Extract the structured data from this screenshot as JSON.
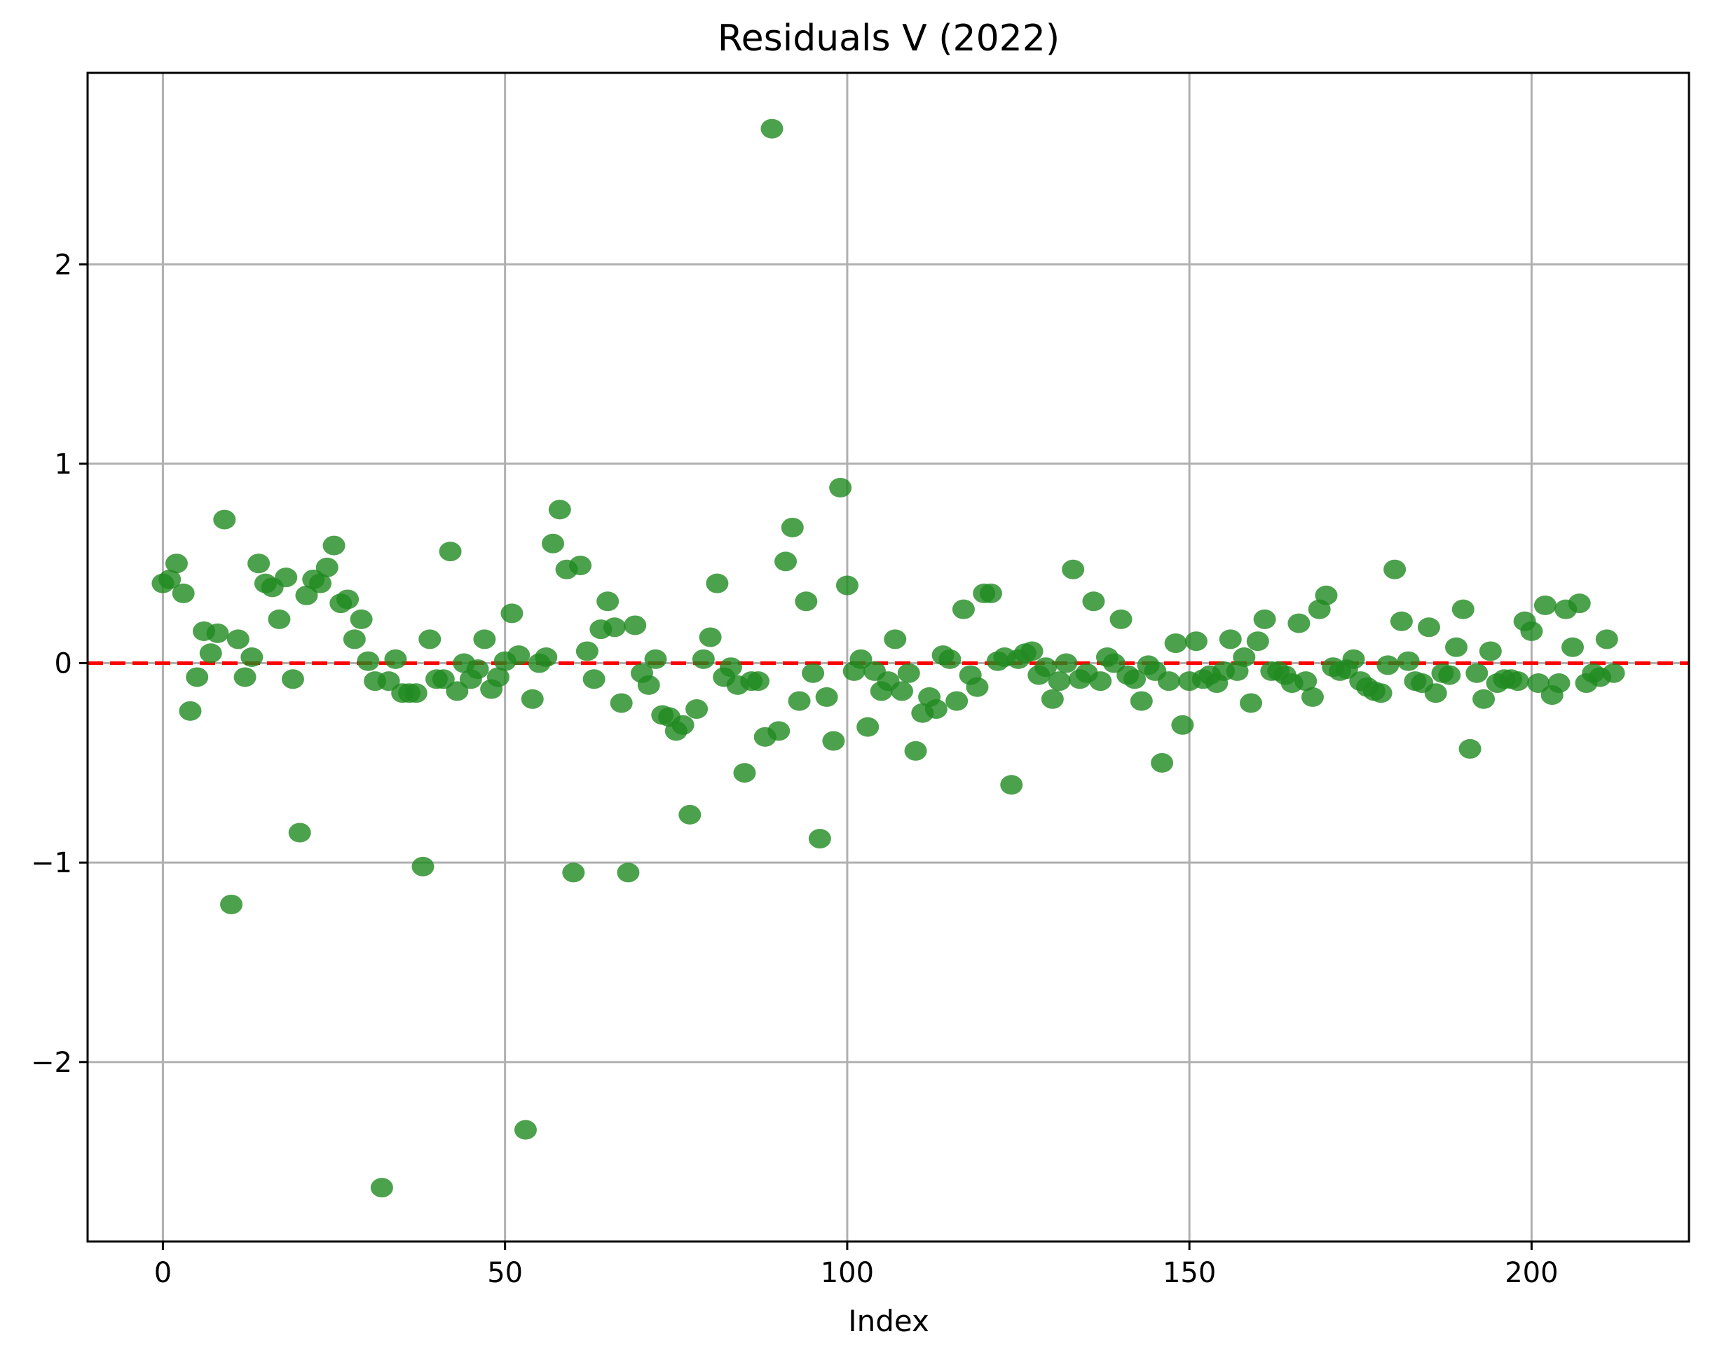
{
  "chart_data": {
    "type": "scatter",
    "title": "Residuals V (2022)",
    "xlabel": "Index",
    "ylabel": "",
    "xlim": [
      -11,
      223
    ],
    "ylim": [
      -2.9,
      2.96
    ],
    "xticks": [
      0,
      50,
      100,
      150,
      200
    ],
    "yticks": [
      -2,
      -1,
      0,
      1,
      2
    ],
    "xtick_labels": [
      "0",
      "50",
      "100",
      "150",
      "200"
    ],
    "ytick_labels": [
      "−2",
      "−1",
      "0",
      "1",
      "2"
    ],
    "grid": true,
    "reference_line": {
      "y": 0,
      "style": "dashed",
      "color": "#ff0000"
    },
    "marker_color": "#1f8a1f",
    "series": [
      {
        "x": [
          0,
          1,
          2,
          3,
          4,
          5,
          6,
          7,
          8,
          9,
          10,
          11,
          12,
          13,
          14,
          15,
          16,
          17,
          18,
          19,
          20,
          21,
          22,
          23,
          24,
          25,
          26,
          27,
          28,
          29,
          30,
          31,
          32,
          33,
          34,
          35,
          36,
          37,
          38,
          39,
          40,
          41,
          42,
          43,
          44,
          45,
          46,
          47,
          48,
          49,
          50,
          51,
          52,
          53,
          54,
          55,
          56,
          57,
          58,
          59,
          60,
          61,
          62,
          63,
          64,
          65,
          66,
          67,
          68,
          69,
          70,
          71,
          72,
          73,
          74,
          75,
          76,
          77,
          78,
          79,
          80,
          81,
          82,
          83,
          84,
          85,
          86,
          87,
          88,
          89,
          90,
          91,
          92,
          93,
          94,
          95,
          96,
          97,
          98,
          99,
          100,
          101,
          102,
          103,
          104,
          105,
          106,
          107,
          108,
          109,
          110,
          111,
          112,
          113,
          114,
          115,
          116,
          117,
          118,
          119,
          120,
          121,
          122,
          123,
          124,
          125,
          126,
          127,
          128,
          129,
          130,
          131,
          132,
          133,
          134,
          135,
          136,
          137,
          138,
          139,
          140,
          141,
          142,
          143,
          144,
          145,
          146,
          147,
          148,
          149,
          150,
          151,
          152,
          153,
          154,
          155,
          156,
          157,
          158,
          159,
          160,
          161,
          162,
          163,
          164,
          165,
          166,
          167,
          168,
          169,
          170,
          171,
          172,
          173,
          174,
          175,
          176,
          177,
          178,
          179,
          180,
          181,
          182,
          183,
          184,
          185,
          186,
          187,
          188,
          189,
          190,
          191,
          192,
          193,
          194,
          195,
          196,
          197,
          198,
          199,
          200,
          201,
          202,
          203,
          204,
          205,
          206,
          207,
          208,
          209,
          210,
          211,
          212
        ],
        "y": [
          0.4,
          0.42,
          0.5,
          0.35,
          -0.24,
          -0.07,
          0.16,
          0.05,
          0.15,
          0.72,
          -1.21,
          0.12,
          -0.07,
          0.03,
          0.5,
          0.4,
          0.38,
          0.22,
          0.43,
          -0.08,
          -0.85,
          0.34,
          0.42,
          0.4,
          0.48,
          0.59,
          0.3,
          0.32,
          0.12,
          0.22,
          0.01,
          -0.09,
          -2.63,
          -0.09,
          0.02,
          -0.15,
          -0.15,
          -0.15,
          -1.02,
          0.12,
          -0.08,
          -0.08,
          0.56,
          -0.14,
          0.0,
          -0.08,
          -0.03,
          0.12,
          -0.13,
          -0.07,
          0.01,
          0.25,
          0.04,
          -2.34,
          -0.18,
          0.0,
          0.03,
          0.6,
          0.77,
          0.47,
          -1.05,
          0.49,
          0.06,
          -0.08,
          0.17,
          0.31,
          0.18,
          -0.2,
          -1.05,
          0.19,
          -0.05,
          -0.11,
          0.02,
          -0.26,
          -0.27,
          -0.34,
          -0.31,
          -0.76,
          -0.23,
          0.02,
          0.13,
          0.4,
          -0.07,
          -0.02,
          -0.11,
          -0.55,
          -0.09,
          -0.09,
          -0.37,
          2.68,
          -0.34,
          0.51,
          0.68,
          -0.19,
          0.31,
          -0.05,
          -0.88,
          -0.17,
          -0.39,
          0.88,
          0.39,
          -0.04,
          0.02,
          -0.32,
          -0.04,
          -0.14,
          -0.09,
          0.12,
          -0.14,
          -0.05,
          -0.44,
          -0.25,
          -0.17,
          -0.23,
          0.04,
          0.02,
          -0.19,
          0.27,
          -0.06,
          -0.12,
          0.35,
          0.35,
          0.01,
          0.03,
          -0.61,
          0.02,
          0.05,
          0.06,
          -0.06,
          -0.02,
          -0.18,
          -0.09,
          0.0,
          0.47,
          -0.08,
          -0.05,
          0.31,
          -0.09,
          0.03,
          0.0,
          0.22,
          -0.06,
          -0.08,
          -0.19,
          -0.01,
          -0.04,
          -0.5,
          -0.09,
          0.1,
          -0.31,
          -0.09,
          0.11,
          -0.08,
          -0.06,
          -0.1,
          -0.04,
          0.12,
          -0.04,
          0.03,
          -0.2,
          0.11,
          0.22,
          -0.04,
          -0.04,
          -0.06,
          -0.1,
          0.2,
          -0.09,
          -0.17,
          0.27,
          0.34,
          -0.02,
          -0.04,
          -0.03,
          0.02,
          -0.09,
          -0.12,
          -0.14,
          -0.15,
          -0.01,
          0.47,
          0.21,
          0.01,
          -0.09,
          -0.1,
          0.18,
          -0.15,
          -0.05,
          -0.06,
          0.08,
          0.27,
          -0.43,
          -0.05,
          -0.18,
          0.06,
          -0.1,
          -0.08,
          -0.08,
          -0.09,
          0.21,
          0.16,
          -0.1,
          0.29,
          -0.16,
          -0.1,
          0.27,
          0.08,
          0.3,
          -0.1,
          -0.05,
          -0.07,
          0.12,
          -0.05
        ]
      }
    ]
  }
}
